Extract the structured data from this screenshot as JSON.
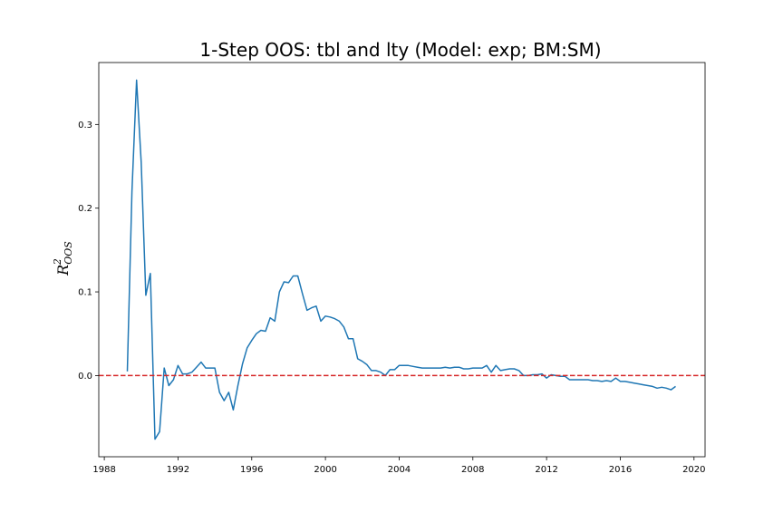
{
  "chart_data": {
    "type": "line",
    "title": "1-Step OOS: tbl and lty (Model: exp; BM:SM)",
    "xlabel": "",
    "ylabel": {
      "base": "R",
      "superscript": "2",
      "subscript": "OOS"
    },
    "xlim": [
      1987.7,
      2020.6
    ],
    "ylim": [
      -0.097,
      0.374
    ],
    "xticks": [
      1988,
      1992,
      1996,
      2000,
      2004,
      2008,
      2012,
      2016,
      2020
    ],
    "xtick_labels": [
      "1988",
      "1992",
      "1996",
      "2000",
      "2004",
      "2008",
      "2012",
      "2016",
      "2020"
    ],
    "yticks": [
      0.0,
      0.1,
      0.2,
      0.3
    ],
    "ytick_labels": [
      "0.0",
      "0.1",
      "0.2",
      "0.3"
    ],
    "grid": false,
    "line_color": "#1f77b4",
    "reference_line": {
      "y": 0.0,
      "color": "#d62728",
      "style": "dashed"
    },
    "series": [
      {
        "x": [
          1989.25,
          1989.5,
          1989.75,
          1990.0,
          1990.25,
          1990.5,
          1990.75,
          1991.0,
          1991.25,
          1991.5,
          1991.75,
          1992.0,
          1992.25,
          1992.5,
          1992.75,
          1993.0,
          1993.25,
          1993.5,
          1993.75,
          1994.0,
          1994.25,
          1994.5,
          1994.75,
          1995.0,
          1995.25,
          1995.5,
          1995.75,
          1996.0,
          1996.25,
          1996.5,
          1996.75,
          1997.0,
          1997.25,
          1997.5,
          1997.75,
          1998.0,
          1998.25,
          1998.5,
          1998.75,
          1999.0,
          1999.25,
          1999.5,
          1999.75,
          2000.0,
          2000.25,
          2000.5,
          2000.75,
          2001.0,
          2001.25,
          2001.5,
          2001.75,
          2002.0,
          2002.25,
          2002.5,
          2002.75,
          2003.0,
          2003.25,
          2003.5,
          2003.75,
          2004.0,
          2004.25,
          2004.5,
          2004.75,
          2005.0,
          2005.25,
          2005.5,
          2005.75,
          2006.0,
          2006.25,
          2006.5,
          2006.75,
          2007.0,
          2007.25,
          2007.5,
          2007.75,
          2008.0,
          2008.25,
          2008.5,
          2008.75,
          2009.0,
          2009.25,
          2009.5,
          2009.75,
          2010.0,
          2010.25,
          2010.5,
          2010.75,
          2011.0,
          2011.25,
          2011.5,
          2011.75,
          2012.0,
          2012.25,
          2012.5,
          2012.75,
          2013.0,
          2013.25,
          2013.5,
          2013.75,
          2014.0,
          2014.25,
          2014.5,
          2014.75,
          2015.0,
          2015.25,
          2015.5,
          2015.75,
          2016.0,
          2016.25,
          2016.5,
          2016.75,
          2017.0,
          2017.25,
          2017.5,
          2017.75,
          2018.0,
          2018.25,
          2018.5,
          2018.75,
          2019.0
        ],
        "values": [
          0.005,
          0.22,
          0.353,
          0.255,
          0.096,
          0.122,
          -0.076,
          -0.067,
          0.009,
          -0.012,
          -0.005,
          0.012,
          0.002,
          0.002,
          0.004,
          0.01,
          0.016,
          0.009,
          0.009,
          0.009,
          -0.02,
          -0.03,
          -0.02,
          -0.041,
          -0.012,
          0.014,
          0.033,
          0.042,
          0.05,
          0.054,
          0.053,
          0.069,
          0.065,
          0.1,
          0.112,
          0.111,
          0.119,
          0.119,
          0.098,
          0.078,
          0.081,
          0.083,
          0.065,
          0.071,
          0.07,
          0.068,
          0.065,
          0.058,
          0.044,
          0.044,
          0.02,
          0.017,
          0.013,
          0.006,
          0.006,
          0.004,
          0.0,
          0.007,
          0.007,
          0.012,
          0.012,
          0.012,
          0.011,
          0.01,
          0.009,
          0.009,
          0.009,
          0.009,
          0.009,
          0.01,
          0.009,
          0.01,
          0.01,
          0.008,
          0.008,
          0.009,
          0.009,
          0.009,
          0.012,
          0.004,
          0.012,
          0.006,
          0.007,
          0.008,
          0.008,
          0.006,
          0.0,
          0.0,
          0.001,
          0.001,
          0.002,
          -0.003,
          0.001,
          0.0,
          -0.001,
          -0.001,
          -0.005,
          -0.005,
          -0.005,
          -0.005,
          -0.005,
          -0.006,
          -0.006,
          -0.007,
          -0.006,
          -0.007,
          -0.003,
          -0.007,
          -0.007,
          -0.008,
          -0.009,
          -0.01,
          -0.011,
          -0.012,
          -0.013,
          -0.015,
          -0.014,
          -0.015,
          -0.017,
          -0.013
        ]
      }
    ]
  }
}
